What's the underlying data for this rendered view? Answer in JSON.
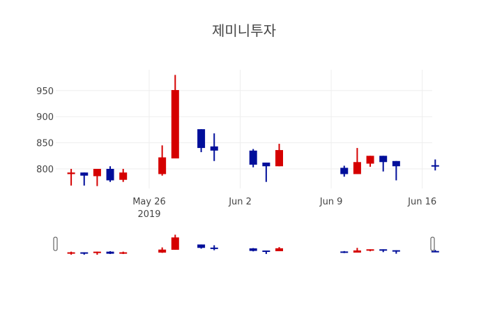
{
  "chart_data": {
    "type": "candlestick",
    "title": "제미니투자",
    "xlabel": "",
    "ylabel": "",
    "ylim": [
      763,
      990
    ],
    "yticks": [
      800,
      850,
      900,
      950
    ],
    "xticks": [
      {
        "label": "May 26",
        "sub": "2019",
        "date": "2019-05-26"
      },
      {
        "label": "Jun 2",
        "sub": "",
        "date": "2019-06-02"
      },
      {
        "label": "Jun 9",
        "sub": "",
        "date": "2019-06-09"
      },
      {
        "label": "Jun 16",
        "sub": "",
        "date": "2019-06-16"
      }
    ],
    "increasing_color": "#d50000",
    "decreasing_color": "#000e9a",
    "grid": true,
    "rangeslider": true,
    "x": [
      "2019-05-20",
      "2019-05-21",
      "2019-05-22",
      "2019-05-23",
      "2019-05-24",
      "2019-05-27",
      "2019-05-28",
      "2019-05-30",
      "2019-05-31",
      "2019-06-03",
      "2019-06-04",
      "2019-06-05",
      "2019-06-10",
      "2019-06-11",
      "2019-06-12",
      "2019-06-13",
      "2019-06-14",
      "2019-06-17"
    ],
    "open": [
      790,
      793,
      786,
      800,
      779,
      790,
      820,
      876,
      843,
      835,
      812,
      805,
      802,
      790,
      810,
      825,
      815,
      807
    ],
    "high": [
      800,
      793,
      800,
      805,
      800,
      845,
      980,
      876,
      868,
      838,
      812,
      848,
      806,
      840,
      825,
      825,
      815,
      818
    ],
    "low": [
      768,
      768,
      767,
      775,
      775,
      787,
      820,
      832,
      815,
      803,
      775,
      805,
      785,
      790,
      804,
      795,
      778,
      797
    ],
    "close": [
      793,
      787,
      800,
      778,
      793,
      822,
      951,
      840,
      835,
      808,
      805,
      836,
      790,
      813,
      825,
      813,
      805,
      805
    ]
  }
}
